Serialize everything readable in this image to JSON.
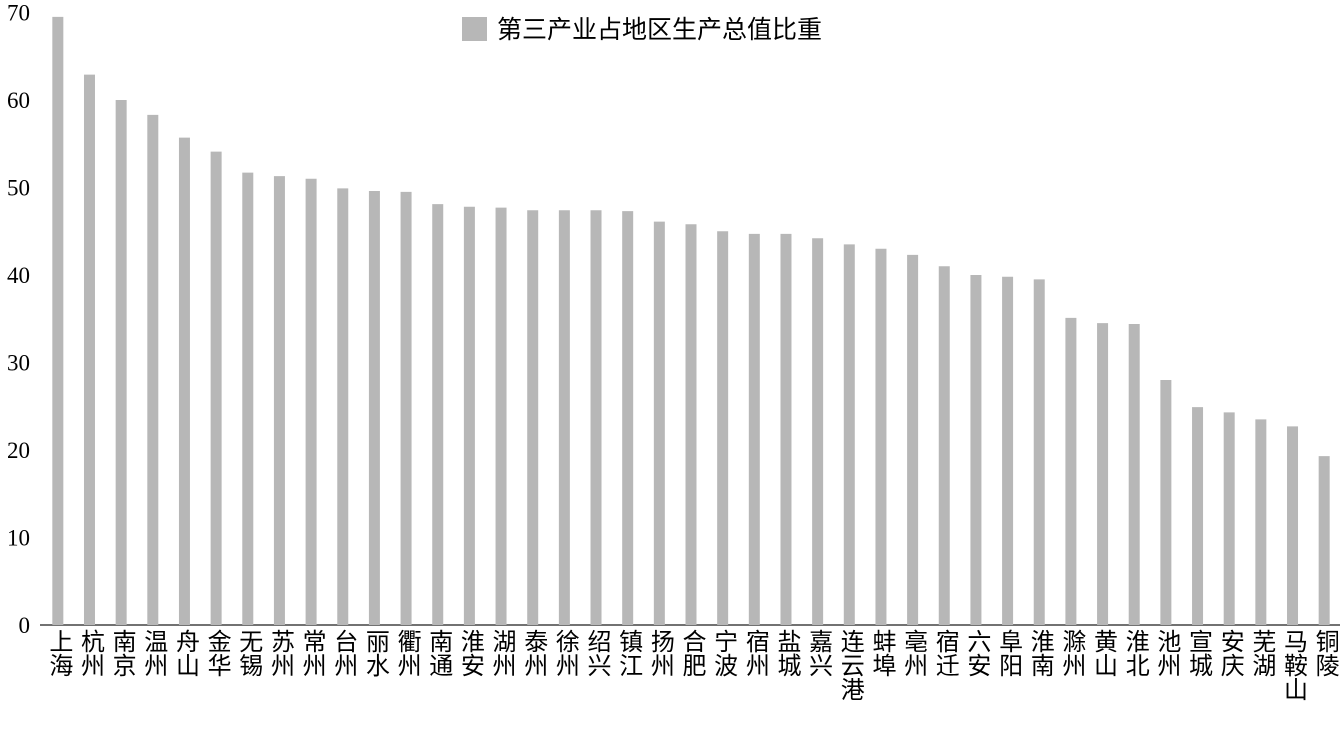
{
  "chart_data": {
    "type": "bar",
    "legend_label": "第三产业占地区生产总值比重",
    "color": "#b7b7b7",
    "categories": [
      "上海",
      "杭州",
      "南京",
      "温州",
      "舟山",
      "金华",
      "无锡",
      "苏州",
      "常州",
      "台州",
      "丽水",
      "衢州",
      "南通",
      "淮安",
      "湖州",
      "泰州",
      "徐州",
      "绍兴",
      "镇江",
      "扬州",
      "合肥",
      "宁波",
      "宿州",
      "盐城",
      "嘉兴",
      "连云港",
      "蚌埠",
      "亳州",
      "宿迁",
      "六安",
      "阜阳",
      "淮南",
      "滁州",
      "黄山",
      "淮北",
      "池州",
      "宣城",
      "安庆",
      "芜湖",
      "马鞍山",
      "铜陵"
    ],
    "values": [
      69.5,
      62.9,
      60.0,
      58.3,
      55.7,
      54.1,
      51.7,
      51.3,
      51.0,
      49.9,
      49.6,
      49.5,
      48.1,
      47.8,
      47.7,
      47.4,
      47.4,
      47.4,
      47.3,
      46.1,
      45.8,
      45.0,
      44.7,
      44.7,
      44.2,
      43.5,
      43.0,
      42.3,
      41.0,
      40.0,
      39.8,
      39.5,
      35.1,
      34.5,
      34.4,
      28.0,
      24.9,
      24.3,
      23.5,
      22.7,
      19.3
    ],
    "ylim": [
      0,
      70
    ],
    "yticks": [
      0,
      10,
      20,
      30,
      40,
      50,
      60,
      70
    ],
    "grid": false
  }
}
